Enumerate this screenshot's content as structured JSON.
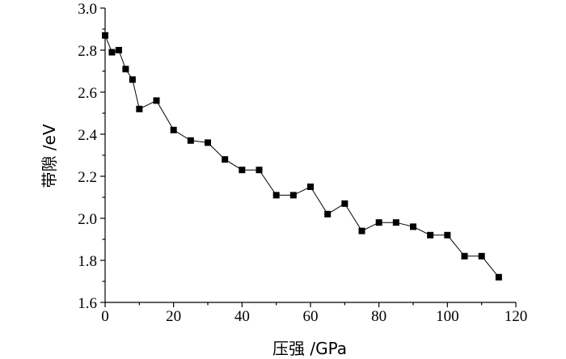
{
  "chart_data": {
    "type": "line",
    "title": "",
    "xlabel": "压强 /GPa",
    "ylabel": "带隙 /eV",
    "xlim": [
      0,
      120
    ],
    "ylim": [
      1.6,
      3.0
    ],
    "x_ticks": [
      "0",
      "20",
      "40",
      "60",
      "80",
      "100",
      "120"
    ],
    "y_ticks": [
      "1.6",
      "1.8",
      "2.0",
      "2.2",
      "2.4",
      "2.6",
      "2.8",
      "3.0"
    ],
    "grid": false,
    "legend": "none",
    "marker": "square",
    "color": "#000000",
    "series": [
      {
        "x": [
          0,
          2,
          4,
          6,
          8,
          10,
          15,
          20,
          25,
          30,
          35,
          40,
          45,
          50,
          55,
          60,
          65,
          70,
          75,
          80,
          85,
          90,
          95,
          100,
          105,
          110,
          115
        ],
        "values": [
          2.87,
          2.79,
          2.8,
          2.71,
          2.66,
          2.52,
          2.56,
          2.42,
          2.37,
          2.36,
          2.28,
          2.23,
          2.23,
          2.11,
          2.11,
          2.15,
          2.02,
          2.07,
          1.94,
          1.98,
          1.98,
          1.96,
          1.92,
          1.92,
          1.82,
          1.82,
          1.72
        ]
      }
    ]
  }
}
